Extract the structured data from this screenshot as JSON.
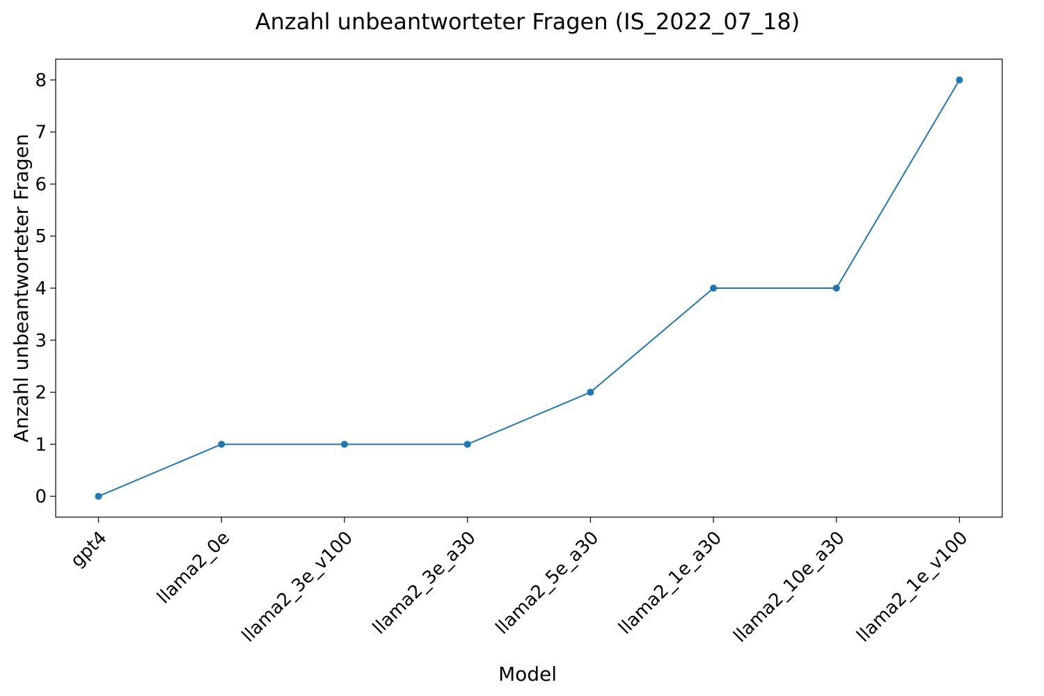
{
  "chart_data": {
    "type": "line",
    "title": "Anzahl unbeantworteter Fragen (IS_2022_07_18)",
    "xlabel": "Model",
    "ylabel": "Anzahl unbeantworteter Fragen",
    "categories": [
      "gpt4",
      "llama2_0e",
      "llama2_3e_v100",
      "llama2_3e_a30",
      "llama2_5e_a30",
      "llama2_1e_a30",
      "llama2_10e_a30",
      "llama2_1e_v100"
    ],
    "series": [
      {
        "values": [
          0,
          1,
          1,
          1,
          2,
          4,
          4,
          8
        ],
        "color": "#1f77b4",
        "marker": "circle"
      }
    ],
    "yticks": [
      0,
      1,
      2,
      3,
      4,
      5,
      6,
      7,
      8
    ],
    "ylim": [
      -0.4,
      8.4
    ],
    "grid": false,
    "legend": "none"
  }
}
